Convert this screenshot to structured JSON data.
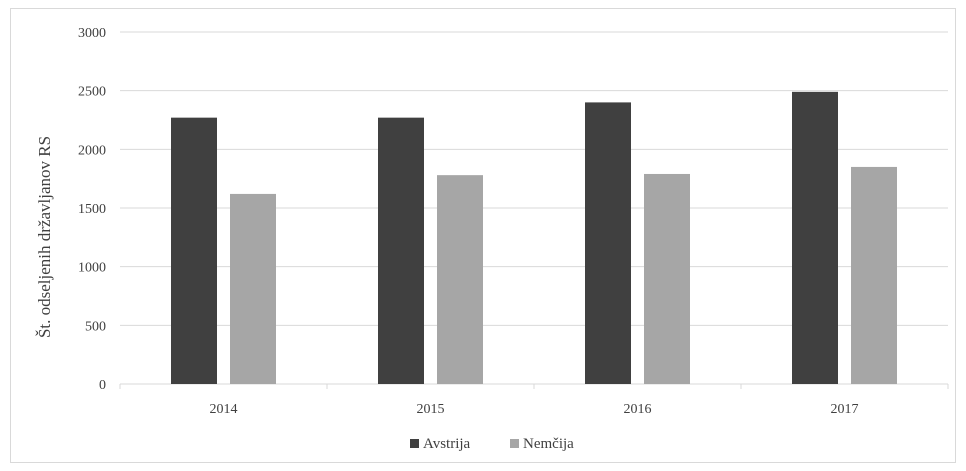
{
  "chart_data": {
    "type": "bar",
    "categories": [
      "2014",
      "2015",
      "2016",
      "2017"
    ],
    "series": [
      {
        "name": "Avstrija",
        "values": [
          2270,
          2270,
          2400,
          2490
        ],
        "color": "#404040"
      },
      {
        "name": "Nemčija",
        "values": [
          1620,
          1780,
          1790,
          1850
        ],
        "color": "#a6a6a6"
      }
    ],
    "title": "",
    "xlabel": "",
    "ylabel": "Št. odseljenih državljanov RS",
    "ylim": [
      0,
      3000
    ],
    "yticks": [
      0,
      500,
      1000,
      1500,
      2000,
      2500,
      3000
    ],
    "grid": true,
    "legend_position": "bottom",
    "gridline_color": "#d9d9d9"
  }
}
